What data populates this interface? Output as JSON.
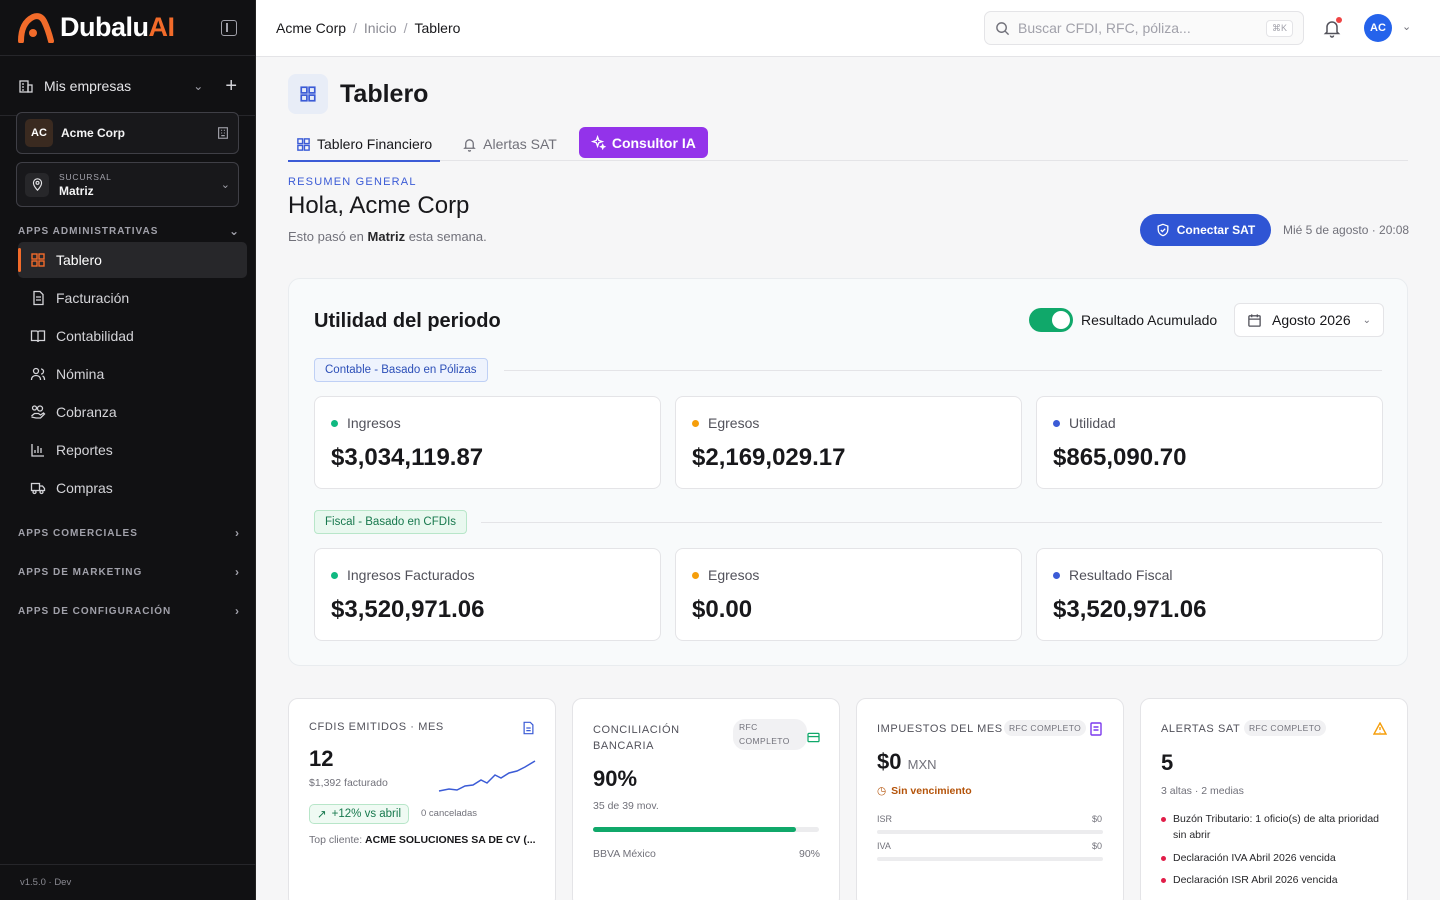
{
  "brand": {
    "name_main": "Dubalu",
    "name_accent": "AI"
  },
  "sidebar": {
    "mis_empresas": "Mis empresas",
    "company": {
      "initials": "AC",
      "name": "Acme Corp"
    },
    "branch": {
      "label": "Sucursal",
      "value": "Matriz"
    },
    "sections": {
      "admin": "Apps administrativas",
      "comerciales": "Apps comerciales",
      "marketing": "Apps de marketing",
      "configuracion": "Apps de configuración"
    },
    "items": [
      {
        "label": "Tablero",
        "icon": "grid-icon"
      },
      {
        "label": "Facturación",
        "icon": "file-icon"
      },
      {
        "label": "Contabilidad",
        "icon": "book-icon"
      },
      {
        "label": "Nómina",
        "icon": "users-icon"
      },
      {
        "label": "Cobranza",
        "icon": "hand-coins-icon"
      },
      {
        "label": "Reportes",
        "icon": "bar-chart-icon"
      },
      {
        "label": "Compras",
        "icon": "truck-icon"
      }
    ],
    "version": "v1.5.0 · Dev"
  },
  "topbar": {
    "breadcrumb": [
      "Acme Corp",
      "Inicio",
      "Tablero"
    ],
    "search_placeholder": "Buscar CFDI, RFC, póliza...",
    "search_shortcut": "⌘K",
    "user_initials": "AC"
  },
  "page": {
    "title": "Tablero",
    "tabs": [
      "Tablero Financiero",
      "Alertas SAT",
      "Consultor IA"
    ],
    "overline": "Resumen general",
    "greeting": "Hola, Acme Corp",
    "sub_pre": "Esto pasó en",
    "sub_branch": "Matriz",
    "sub_post": "esta semana.",
    "connect_sat": "Conectar SAT",
    "datetime": "Mié 5 de agosto · 20:08"
  },
  "utilidad": {
    "title": "Utilidad del periodo",
    "toggle_label": "Resultado Acumulado",
    "month": "Agosto 2026",
    "contable_chip": "Contable - Basado en Pólizas",
    "fiscal_chip": "Fiscal - Basado en CFDIs",
    "contable": [
      {
        "label": "Ingresos",
        "value": "$3,034,119.87",
        "color": "#10b981"
      },
      {
        "label": "Egresos",
        "value": "$2,169,029.17",
        "color": "#f59e0b"
      },
      {
        "label": "Utilidad",
        "value": "$865,090.70",
        "color": "#3b5bd6"
      }
    ],
    "fiscal": [
      {
        "label": "Ingresos Facturados",
        "value": "$3,520,971.06",
        "color": "#10b981"
      },
      {
        "label": "Egresos",
        "value": "$0.00",
        "color": "#f59e0b"
      },
      {
        "label": "Resultado Fiscal",
        "value": "$3,520,971.06",
        "color": "#3b5bd6"
      }
    ]
  },
  "cards": {
    "cfdis": {
      "title": "CFDIs emitidos · mes",
      "value": "12",
      "sub": "$1,392 facturado",
      "trend": "+12% vs abril",
      "cancel": "0 canceladas",
      "top_label": "Top cliente:",
      "top_value": "ACME SOLUCIONES SA DE CV (..."
    },
    "conciliacion": {
      "title_1": "Conciliación",
      "title_2": "bancaria",
      "badge_1": "RFC",
      "badge_2": "COMPLETO",
      "value": "90%",
      "sub": "35 de 39 mov.",
      "progress": 0.9,
      "bank": "BBVA México",
      "bank_pct": "90%"
    },
    "impuestos": {
      "title": "Impuestos del mes",
      "badge": "RFC COMPLETO",
      "value": "$0",
      "unit": "MXN",
      "status": "Sin vencimiento",
      "rows": [
        {
          "label": "ISR",
          "value": "$0"
        },
        {
          "label": "IVA",
          "value": "$0"
        }
      ]
    },
    "alertas": {
      "title": "Alertas SAT",
      "badge": "RFC COMPLETO",
      "value": "5",
      "sub": "3 altas · 2 medias",
      "items": [
        "Buzón Tributario: 1 oficio(s) de alta prioridad sin abrir",
        "Declaración IVA Abril 2026 vencida",
        "Declaración ISR Abril 2026 vencida"
      ]
    }
  },
  "colors": {
    "accent": "#f26b2a",
    "primary": "#2f55d4",
    "ia": "#9333ea",
    "success": "#10a86a"
  }
}
